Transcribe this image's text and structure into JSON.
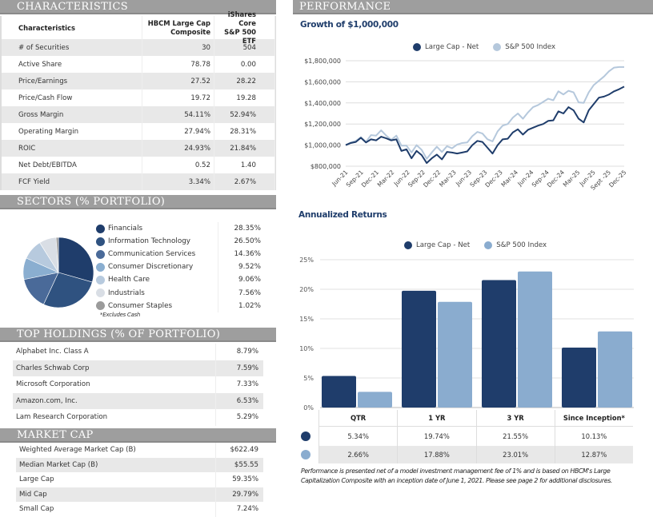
{
  "characteristics": {
    "title": "CHARACTERISTICS",
    "headers": [
      "Characteristics",
      "HBCM Large Cap Composite",
      "iShares Core S&P 500 ETF"
    ],
    "header_lines": {
      "c1a": "HBCM Large Cap",
      "c1b": "Composite",
      "c2a": "iShares Core",
      "c2b": "S&P 500 ETF"
    },
    "rows": [
      {
        "label": "# of Securities",
        "composite": "30",
        "benchmark": "504"
      },
      {
        "label": "Active Share",
        "composite": "78.78",
        "benchmark": "0.00"
      },
      {
        "label": "Price/Earnings",
        "composite": "27.52",
        "benchmark": "28.22"
      },
      {
        "label": "Price/Cash Flow",
        "composite": "19.72",
        "benchmark": "19.28"
      },
      {
        "label": "Gross Margin",
        "composite": "54.11%",
        "benchmark": "52.94%"
      },
      {
        "label": "Operating Margin",
        "composite": "27.94%",
        "benchmark": "28.31%"
      },
      {
        "label": "ROIC",
        "composite": "24.93%",
        "benchmark": "21.84%"
      },
      {
        "label": "Net Debt/EBITDA",
        "composite": "0.52",
        "benchmark": "1.40"
      },
      {
        "label": "FCF Yield",
        "composite": "3.34%",
        "benchmark": "2.67%"
      }
    ]
  },
  "sectors": {
    "title": "SECTORS (% PORTFOLIO)",
    "note": "*Excludes Cash",
    "items": [
      {
        "name": "Financials",
        "value": "28.35%",
        "pct": 28.35,
        "color": "#1f3d6b"
      },
      {
        "name": "Information Technology",
        "value": "26.50%",
        "pct": 26.5,
        "color": "#2f5280"
      },
      {
        "name": "Communication Services",
        "value": "14.36%",
        "pct": 14.36,
        "color": "#4a6a99"
      },
      {
        "name": "Consumer Discretionary",
        "value": "9.52%",
        "pct": 9.52,
        "color": "#8aaed0"
      },
      {
        "name": "Health Care",
        "value": "9.06%",
        "pct": 9.06,
        "color": "#b7cade"
      },
      {
        "name": "Industrials",
        "value": "7.56%",
        "pct": 7.56,
        "color": "#d9dee5"
      },
      {
        "name": "Consumer Staples",
        "value": "1.02%",
        "pct": 1.02,
        "color": "#9b9b9b"
      }
    ]
  },
  "top_holdings": {
    "title": "TOP HOLDINGS (% OF PORTFOLIO)",
    "rows": [
      {
        "name": "Alphabet Inc. Class A",
        "value": "8.79%"
      },
      {
        "name": "Charles Schwab Corp",
        "value": "7.59%"
      },
      {
        "name": "Microsoft Corporation",
        "value": "7.33%"
      },
      {
        "name": "Amazon.com, Inc.",
        "value": "6.53%"
      },
      {
        "name": "Lam Research Corporation",
        "value": "5.29%"
      }
    ]
  },
  "market_cap": {
    "title": "MARKET CAP",
    "rows": [
      {
        "name": "Weighted Average Market Cap (B)",
        "value": "$622.49"
      },
      {
        "name": "Median Market Cap (B)",
        "value": "$55.55"
      },
      {
        "name": "Large Cap",
        "value": "59.35%"
      },
      {
        "name": "Mid Cap",
        "value": "29.79%"
      },
      {
        "name": "Small Cap",
        "value": "7.24%"
      }
    ]
  },
  "performance": {
    "title": "PERFORMANCE",
    "growth_title": "Growth of $1,000,000",
    "returns_title": "Annualized Returns",
    "legend": {
      "series1": "Large Cap - Net",
      "series2": "S&P 500 Index"
    },
    "colors": {
      "net": "#1f3d6b",
      "index_line": "#b5c8dc",
      "index_bar": "#8aaccf"
    },
    "returns_table": {
      "headers": [
        "QTR",
        "1 YR",
        "3 YR",
        "Since Inception*"
      ],
      "net": [
        "5.34%",
        "19.74%",
        "21.55%",
        "10.13%"
      ],
      "index": [
        "2.66%",
        "17.88%",
        "23.01%",
        "12.87%"
      ]
    },
    "disclaimer": "Performance is presented net of a model investment management fee of 1% and is based on HBCM's Large Capitalization Composite with an inception date of June 1, 2021. Please see page 2 for additional disclosures."
  },
  "chart_data": [
    {
      "type": "line",
      "title": "Growth of $1,000,000",
      "xlabel": "",
      "ylabel": "",
      "ylim": [
        800000,
        1800000
      ],
      "yticks": [
        "$800,000",
        "$1,000,000",
        "$1,200,000",
        "$1,400,000",
        "$1,600,000",
        "$1,800,000"
      ],
      "ytick_values": [
        800000,
        1000000,
        1200000,
        1400000,
        1600000,
        1800000
      ],
      "xtick_labels": [
        "Jun-21",
        "Sep-21",
        "Dec-21",
        "Mar-22",
        "Jun-22",
        "Sep-22",
        "Dec-22",
        "Mar-23",
        "Jun-23",
        "Sep-23",
        "Dec-23",
        "Mar-24",
        "Jun-24",
        "Sep-24",
        "Dec-24",
        "Mar-25",
        "Jun-25",
        "Sept -25",
        "Dec-25"
      ],
      "legend": "top-center",
      "grid": true,
      "series": [
        {
          "name": "Large Cap - Net",
          "color": "#1f3d6b",
          "values": [
            1000000,
            1020000,
            1030000,
            1070000,
            1025000,
            1055000,
            1045000,
            1080000,
            1065000,
            1045000,
            1055000,
            945000,
            960000,
            875000,
            945000,
            905000,
            830000,
            875000,
            910000,
            865000,
            935000,
            930000,
            920000,
            930000,
            940000,
            1000000,
            1040000,
            1030000,
            975000,
            920000,
            1000000,
            1055000,
            1060000,
            1120000,
            1150000,
            1100000,
            1145000,
            1165000,
            1185000,
            1200000,
            1230000,
            1235000,
            1320000,
            1300000,
            1360000,
            1330000,
            1250000,
            1215000,
            1330000,
            1390000,
            1450000,
            1460000,
            1480000,
            1510000,
            1530000,
            1555000
          ]
        },
        {
          "name": "S&P 500 Index",
          "color": "#b5c8dc",
          "values": [
            1000000,
            1025000,
            1040000,
            1075000,
            1030000,
            1095000,
            1090000,
            1140000,
            1090000,
            1050000,
            1090000,
            995000,
            995000,
            930000,
            1000000,
            955000,
            870000,
            930000,
            985000,
            935000,
            990000,
            970000,
            1005000,
            1020000,
            1025000,
            1085000,
            1125000,
            1110000,
            1055000,
            1035000,
            1130000,
            1185000,
            1200000,
            1260000,
            1300000,
            1250000,
            1310000,
            1360000,
            1380000,
            1410000,
            1440000,
            1425000,
            1510000,
            1480000,
            1515000,
            1500000,
            1405000,
            1400000,
            1500000,
            1570000,
            1610000,
            1650000,
            1700000,
            1735000,
            1740000,
            1740000
          ]
        }
      ]
    },
    {
      "type": "bar",
      "title": "Annualized Returns",
      "categories": [
        "QTR",
        "1 YR",
        "3 YR",
        "Since Inception*"
      ],
      "ylim": [
        0,
        25
      ],
      "yticks": [
        "0%",
        "5%",
        "10%",
        "15%",
        "20%",
        "25%"
      ],
      "ytick_values": [
        0,
        5,
        10,
        15,
        20,
        25
      ],
      "legend": "top-center",
      "grid": true,
      "series": [
        {
          "name": "Large Cap - Net",
          "color": "#1f3d6b",
          "values": [
            5.34,
            19.74,
            21.55,
            10.13
          ]
        },
        {
          "name": "S&P 500 Index",
          "color": "#8aaccf",
          "values": [
            2.66,
            17.88,
            23.01,
            12.87
          ]
        }
      ]
    }
  ]
}
